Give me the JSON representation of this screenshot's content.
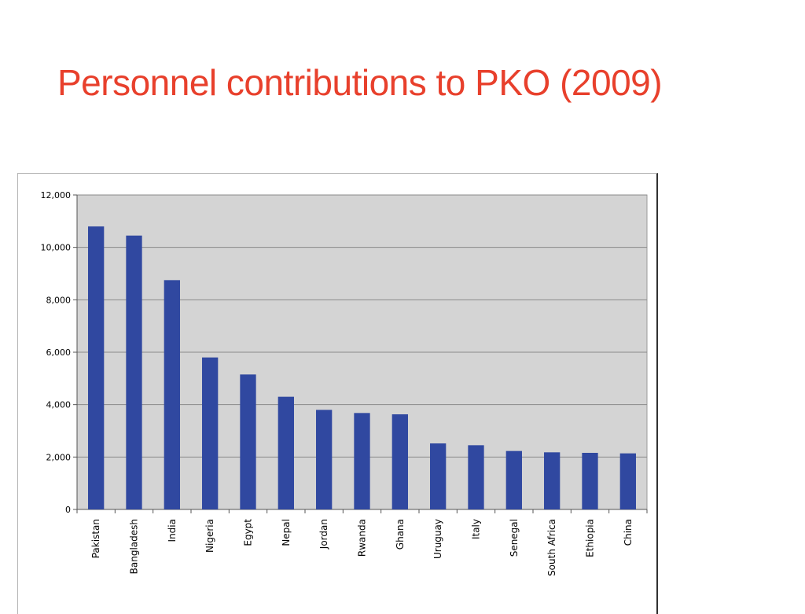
{
  "slide": {
    "title": "Personnel contributions to PKO (2009)"
  },
  "colors": {
    "title": "#e8402c",
    "bar": "#3048a0",
    "plot_bg": "#d4d4d4",
    "gridline": "#8a8a8a"
  },
  "chart_data": {
    "type": "bar",
    "categories": [
      "Pakistan",
      "Bangladesh",
      "India",
      "Nigeria",
      "Egypt",
      "Nepal",
      "Jordan",
      "Rwanda",
      "Ghana",
      "Uruguay",
      "Italy",
      "Senegal",
      "South Africa",
      "Ethiopia",
      "China"
    ],
    "values": [
      10800,
      10450,
      8750,
      5800,
      5150,
      4300,
      3800,
      3680,
      3630,
      2520,
      2450,
      2230,
      2180,
      2160,
      2140
    ],
    "y_ticks": [
      "0",
      "2,000",
      "4,000",
      "6,000",
      "8,000",
      "10,000",
      "12,000"
    ],
    "ylim": [
      0,
      12000
    ],
    "grid": true,
    "legend": "none",
    "xlabel": "",
    "ylabel": ""
  }
}
